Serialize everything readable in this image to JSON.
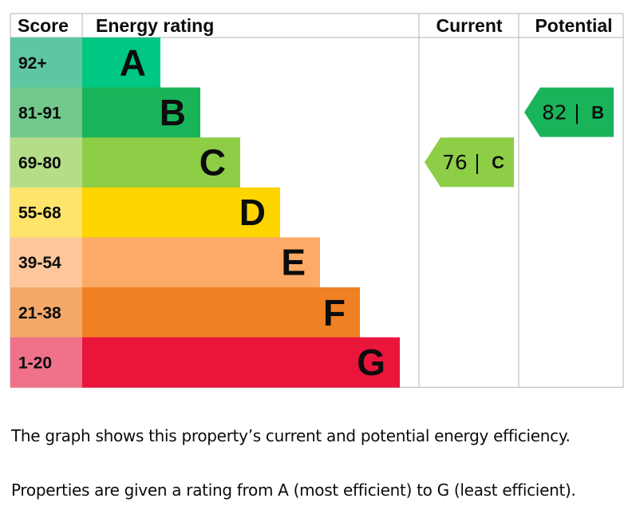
{
  "chart_data": {
    "type": "bar",
    "headers": {
      "score": "Score",
      "rating": "Energy rating",
      "current": "Current",
      "potential": "Potential"
    },
    "bands": [
      {
        "score": "92+",
        "letter": "A",
        "color": "#00c781",
        "score_color": "#5ec6a0"
      },
      {
        "score": "81-91",
        "letter": "B",
        "color": "#19b459",
        "score_color": "#72c98c"
      },
      {
        "score": "69-80",
        "letter": "C",
        "color": "#8dce46",
        "score_color": "#b4dd88"
      },
      {
        "score": "55-68",
        "letter": "D",
        "color": "#ffd500",
        "score_color": "#ffe46b"
      },
      {
        "score": "39-54",
        "letter": "E",
        "color": "#fcaa65",
        "score_color": "#fdc79b"
      },
      {
        "score": "21-38",
        "letter": "F",
        "color": "#ef8023",
        "score_color": "#f4a86a"
      },
      {
        "score": "1-20",
        "letter": "G",
        "color": "#e9153b",
        "score_color": "#f0718a"
      }
    ],
    "current": {
      "value": 76,
      "letter": "C",
      "color": "#8dce46"
    },
    "potential": {
      "value": 82,
      "letter": "B",
      "color": "#19b459"
    }
  },
  "captions": [
    "The graph shows this property’s current and potential energy efficiency.",
    "Properties are given a rating from A (most efficient) to G (least efficient)."
  ]
}
